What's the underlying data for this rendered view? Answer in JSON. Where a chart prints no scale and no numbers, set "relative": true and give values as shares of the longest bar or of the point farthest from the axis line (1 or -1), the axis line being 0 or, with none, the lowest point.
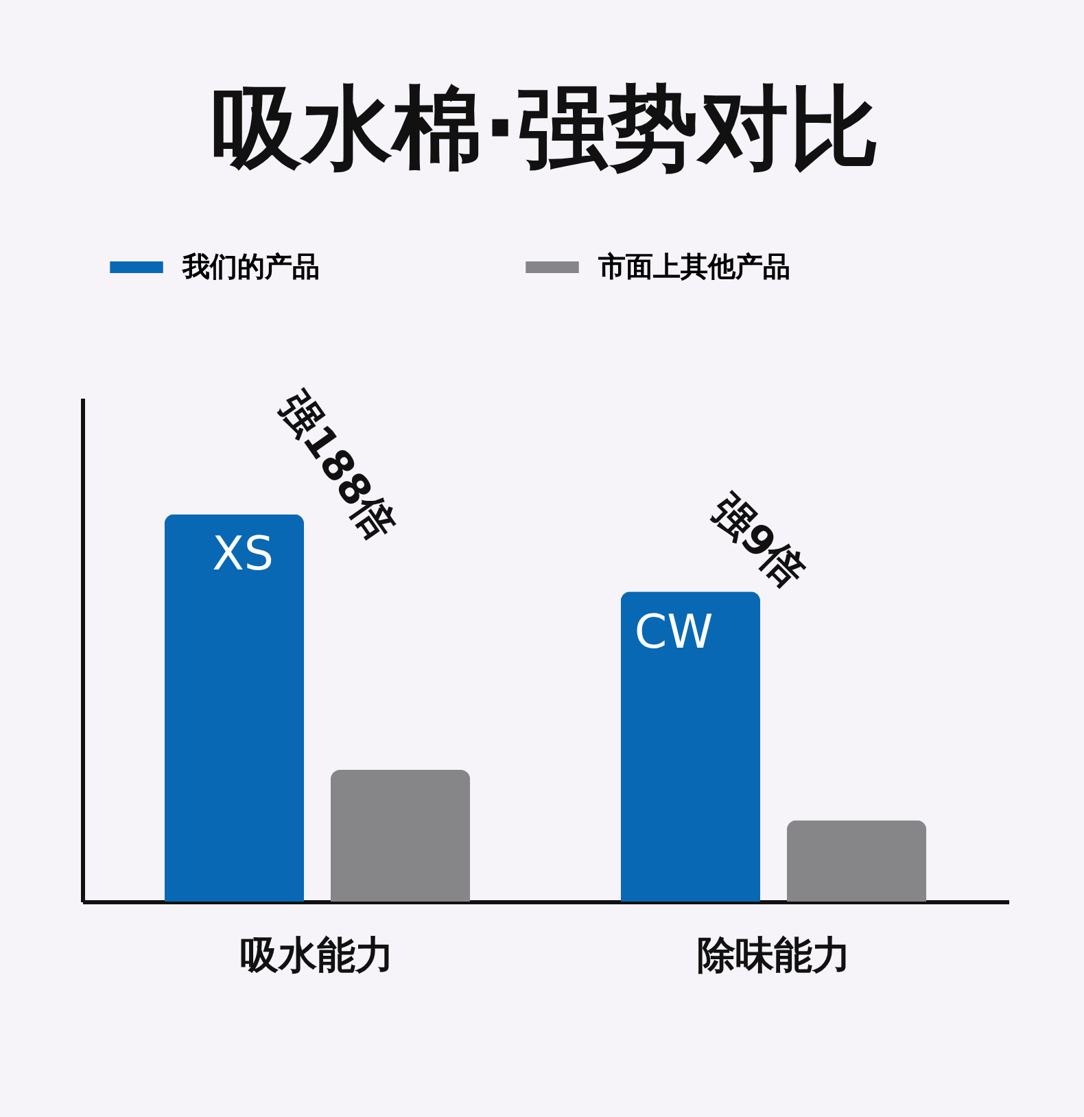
{
  "chart_data": {
    "type": "bar",
    "title": "吸水棉·强势对比",
    "relative": true,
    "categories": [
      "吸水能力",
      "除味能力"
    ],
    "series": [
      {
        "name": "我们的产品",
        "color": "#0868b4",
        "values": [
          1,
          0.8
        ]
      },
      {
        "name": "市面上其他产品",
        "color": "#868688",
        "values": [
          0.34,
          0.21
        ]
      }
    ],
    "annotations": [
      "XS",
      "强188倍",
      "CW",
      "强9倍"
    ],
    "grid": false,
    "legend": "top"
  }
}
